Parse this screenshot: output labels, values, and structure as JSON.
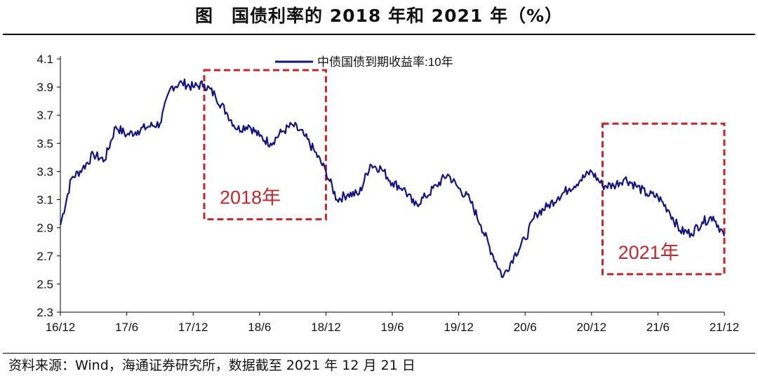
{
  "header": {
    "title": "图　国债利率的 2018 年和 2021 年（%）"
  },
  "footer": {
    "source": "资料来源：Wind，海通证券研究所，数据截至 2021 年 12 月 21 日"
  },
  "colors": {
    "series": "#15147f",
    "highlight": "#c0272d",
    "axis": "#000000"
  },
  "chart_data": {
    "type": "line",
    "title": "图　国债利率的 2018 年和 2021 年（%）",
    "xlabel": "",
    "ylabel": "",
    "x_ticks": [
      "16/12",
      "17/6",
      "17/12",
      "18/6",
      "18/12",
      "19/6",
      "19/12",
      "20/6",
      "20/12",
      "21/6",
      "21/12"
    ],
    "y_ticks": [
      "2.3",
      "2.5",
      "2.7",
      "2.9",
      "3.1",
      "3.3",
      "3.5",
      "3.7",
      "3.9",
      "4.1"
    ],
    "ylim": [
      2.3,
      4.1
    ],
    "xlim": [
      "2016-12",
      "2021-12"
    ],
    "grid": false,
    "legend_position": "top-center",
    "series": [
      {
        "name": "中债国债到期收益率:10年",
        "color": "#15147f",
        "x": [
          "2016-12",
          "2017-01",
          "2017-02",
          "2017-03",
          "2017-04",
          "2017-05",
          "2017-06",
          "2017-07",
          "2017-08",
          "2017-09",
          "2017-10",
          "2017-11",
          "2017-12",
          "2018-01",
          "2018-02",
          "2018-03",
          "2018-04",
          "2018-05",
          "2018-06",
          "2018-07",
          "2018-08",
          "2018-09",
          "2018-10",
          "2018-11",
          "2018-12",
          "2019-01",
          "2019-02",
          "2019-03",
          "2019-04",
          "2019-05",
          "2019-06",
          "2019-07",
          "2019-08",
          "2019-09",
          "2019-10",
          "2019-11",
          "2019-12",
          "2020-01",
          "2020-02",
          "2020-03",
          "2020-04",
          "2020-05",
          "2020-06",
          "2020-07",
          "2020-08",
          "2020-09",
          "2020-10",
          "2020-11",
          "2020-12",
          "2021-01",
          "2021-02",
          "2021-03",
          "2021-04",
          "2021-05",
          "2021-06",
          "2021-07",
          "2021-08",
          "2021-09",
          "2021-10",
          "2021-11",
          "2021-12"
        ],
        "values": [
          2.92,
          3.25,
          3.32,
          3.42,
          3.38,
          3.62,
          3.56,
          3.59,
          3.62,
          3.64,
          3.9,
          3.93,
          3.9,
          3.92,
          3.84,
          3.72,
          3.6,
          3.63,
          3.55,
          3.5,
          3.58,
          3.63,
          3.56,
          3.44,
          3.3,
          3.1,
          3.14,
          3.14,
          3.35,
          3.32,
          3.22,
          3.18,
          3.06,
          3.12,
          3.2,
          3.28,
          3.18,
          3.1,
          2.92,
          2.72,
          2.55,
          2.7,
          2.82,
          3.0,
          3.05,
          3.12,
          3.18,
          3.24,
          3.3,
          3.2,
          3.2,
          3.25,
          3.2,
          3.14,
          3.12,
          3.02,
          2.88,
          2.86,
          2.94,
          2.98,
          2.84
        ]
      }
    ],
    "annotations": [
      {
        "label": "2018年",
        "x_start": "2018-01",
        "x_end": "2018-12",
        "y_start": 2.96,
        "y_end": 4.02
      },
      {
        "label": "2021年",
        "x_start": "2021-01",
        "x_end": "2021-12",
        "y_start": 2.57,
        "y_end": 3.64
      }
    ]
  }
}
